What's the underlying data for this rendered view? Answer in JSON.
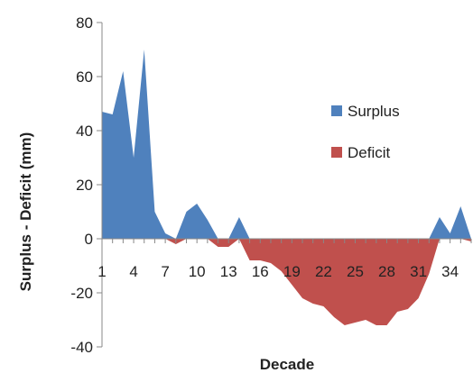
{
  "chart_data": {
    "type": "area",
    "xlabel": "Decade",
    "ylabel": "Surplus - Deficit (mm)",
    "x": [
      1,
      2,
      3,
      4,
      5,
      6,
      7,
      8,
      9,
      10,
      11,
      12,
      13,
      14,
      15,
      16,
      17,
      18,
      19,
      20,
      21,
      22,
      23,
      24,
      25,
      26,
      27,
      28,
      29,
      30,
      31,
      32,
      33,
      34,
      35,
      36
    ],
    "x_tick_labels": [
      "1",
      "4",
      "7",
      "10",
      "13",
      "16",
      "19",
      "22",
      "25",
      "28",
      "31",
      "34"
    ],
    "ylim": [
      -40,
      80
    ],
    "y_ticks": [
      -40,
      -20,
      0,
      20,
      40,
      60,
      80
    ],
    "grid": false,
    "legend_position": "right",
    "series": [
      {
        "name": "Surplus",
        "color": "#4F81BD",
        "values": [
          47,
          46,
          62,
          30,
          70,
          10,
          2,
          0,
          10,
          13,
          7,
          0,
          0,
          8,
          0,
          0,
          0,
          0,
          0,
          0,
          0,
          0,
          0,
          0,
          0,
          0,
          0,
          0,
          0,
          0,
          0,
          0,
          8,
          2,
          12,
          0
        ]
      },
      {
        "name": "Deficit",
        "color": "#C0504D",
        "values": [
          0,
          0,
          0,
          0,
          0,
          0,
          0,
          -2,
          0,
          0,
          0,
          -3,
          -3,
          0,
          -8,
          -8,
          -9,
          -12,
          -17,
          -22,
          -24,
          -25,
          -29,
          -32,
          -31,
          -30,
          -32,
          -32,
          -27,
          -26,
          -22,
          -13,
          0,
          0,
          0,
          -1
        ]
      }
    ]
  }
}
